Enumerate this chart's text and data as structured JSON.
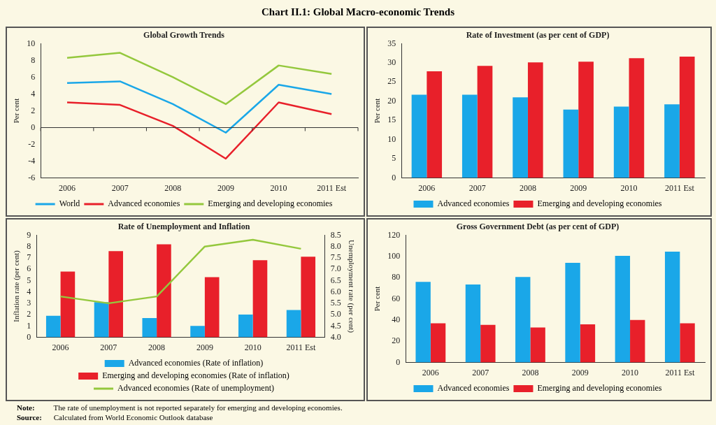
{
  "chart_data": [
    {
      "type": "line",
      "title": "Global Growth Trends",
      "ylabel": "Per cent",
      "categories": [
        "2006",
        "2007",
        "2008",
        "2009",
        "2010",
        "2011 Est"
      ],
      "series": [
        {
          "name": "World",
          "color": "#1aa7e8",
          "values": [
            5.3,
            5.5,
            2.8,
            -0.6,
            5.1,
            4.0
          ]
        },
        {
          "name": "Advanced economies",
          "color": "#e8202a",
          "values": [
            3.0,
            2.7,
            0.2,
            -3.7,
            3.0,
            1.6
          ]
        },
        {
          "name": "Emerging and developing economies",
          "color": "#94c83d",
          "values": [
            8.3,
            8.9,
            6.0,
            2.8,
            7.4,
            6.4
          ]
        }
      ],
      "ylim": [
        -6,
        10
      ],
      "yticks": [
        -6,
        -4,
        -2,
        0,
        2,
        4,
        6,
        8,
        10
      ],
      "marker": "none",
      "legend": "bottom",
      "annotations": [
        "Chart II.1: Global Macro-economic Trends",
        "Note: The rate of unemployment is not reported separately for emerging and developing economies.",
        "Source: Calculated from World Economic Outlook database"
      ]
    },
    {
      "type": "bar",
      "title": "Rate of Investment (as per cent of GDP)",
      "ylabel": "Per cent",
      "categories": [
        "2006",
        "2007",
        "2008",
        "2009",
        "2010",
        "2011 Est"
      ],
      "series": [
        {
          "name": "Advanced economies",
          "color": "#1aa7e8",
          "values": [
            21.7,
            21.7,
            21.0,
            17.8,
            18.6,
            19.2
          ]
        },
        {
          "name": "Emerging and developing economies",
          "color": "#e8202a",
          "values": [
            27.8,
            29.2,
            30.1,
            30.3,
            31.2,
            31.6
          ]
        }
      ],
      "ylim": [
        0,
        35
      ],
      "yticks": [
        0,
        5,
        10,
        15,
        20,
        25,
        30,
        35
      ],
      "legend": "bottom"
    },
    {
      "type": "bar",
      "title": "Rate of Unemployment and Inflation",
      "ylabel": "Inflation rate (per cent)",
      "y2label": "Unemployment rate (per cent)",
      "categories": [
        "2006",
        "2007",
        "2008",
        "2009",
        "2010",
        "2011 Est"
      ],
      "series": [
        {
          "name": "Advanced economies (Rate of inflation)",
          "color": "#1aa7e8",
          "values": [
            1.9,
            3.1,
            1.7,
            1.0,
            2.0,
            2.4
          ]
        },
        {
          "name": "Emerging and developing economies (Rate of inflation)",
          "color": "#e8202a",
          "values": [
            5.8,
            7.6,
            8.2,
            5.3,
            6.8,
            7.1
          ]
        },
        {
          "name": "Advanced economies (Rate of unemployment)",
          "type": "line",
          "axis": "y2",
          "color": "#94c83d",
          "values": [
            5.8,
            5.5,
            5.8,
            8.0,
            8.3,
            7.9
          ]
        }
      ],
      "ylim": [
        0,
        9
      ],
      "yticks": [
        0,
        1,
        2,
        3,
        4,
        5,
        6,
        7,
        8,
        9
      ],
      "y2lim": [
        4.0,
        8.5
      ],
      "y2ticks": [
        {
          "value": 4,
          "label": "4.0"
        },
        4.5,
        {
          "value": 5,
          "label": "5.0"
        },
        5.5,
        {
          "value": 6,
          "label": "6.0"
        },
        6.5,
        {
          "value": 7,
          "label": "7.0"
        },
        7.5,
        {
          "value": 8,
          "label": "8.0"
        },
        8.5
      ],
      "marker": "none",
      "legend": "bottom"
    },
    {
      "type": "bar",
      "title": "Gross Government Debt (as per cent of GDP)",
      "ylabel": "Per cent",
      "categories": [
        "2006",
        "2007",
        "2008",
        "2009",
        "2010",
        "2011 Est"
      ],
      "series": [
        {
          "name": "Advanced economies",
          "color": "#1aa7e8",
          "values": [
            76,
            73.5,
            80.5,
            94,
            100.5,
            104.5
          ]
        },
        {
          "name": "Emerging and developing economies",
          "color": "#e8202a",
          "values": [
            37,
            35.5,
            33,
            36,
            40,
            37
          ]
        }
      ],
      "ylim": [
        0,
        120
      ],
      "yticks": [
        0,
        20,
        40,
        60,
        80,
        100,
        120
      ],
      "legend": "bottom"
    }
  ]
}
